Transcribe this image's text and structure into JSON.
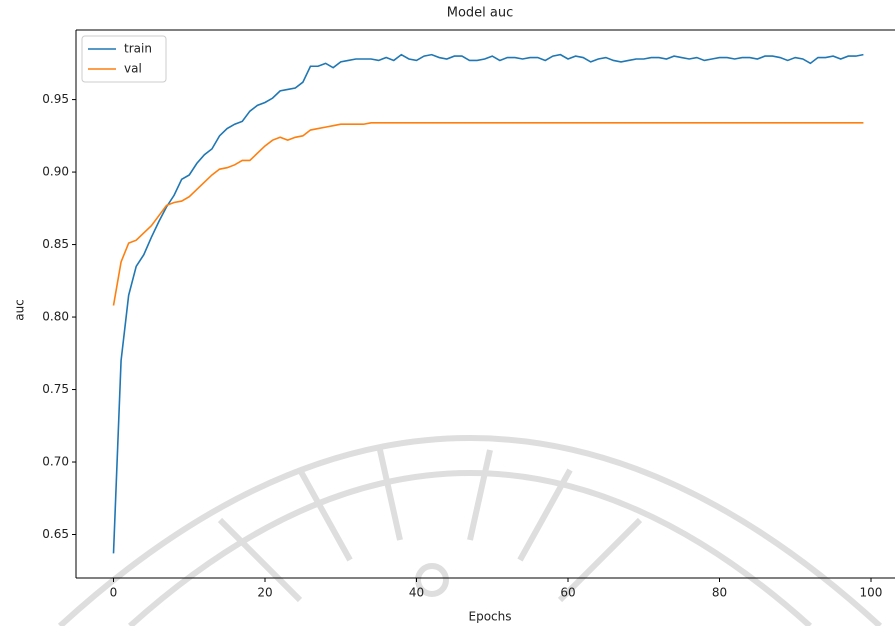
{
  "chart_data": {
    "type": "line",
    "title": "Model auc",
    "x_label": "Epochs",
    "y_label": "auc",
    "x": [
      0,
      1,
      2,
      3,
      4,
      5,
      6,
      7,
      8,
      9,
      10,
      11,
      12,
      13,
      14,
      15,
      16,
      17,
      18,
      19,
      20,
      21,
      22,
      23,
      24,
      25,
      26,
      27,
      28,
      29,
      30,
      31,
      32,
      33,
      34,
      35,
      36,
      37,
      38,
      39,
      40,
      41,
      42,
      43,
      44,
      45,
      46,
      47,
      48,
      49,
      50,
      51,
      52,
      53,
      54,
      55,
      56,
      57,
      58,
      59,
      60,
      61,
      62,
      63,
      64,
      65,
      66,
      67,
      68,
      69,
      70,
      71,
      72,
      73,
      74,
      75,
      76,
      77,
      78,
      79,
      80,
      81,
      82,
      83,
      84,
      85,
      86,
      87,
      88,
      89,
      90,
      91,
      92,
      93,
      94,
      95,
      96,
      97,
      98,
      99
    ],
    "series": [
      {
        "name": "train",
        "color": "#1f77b4",
        "values": [
          0.637,
          0.77,
          0.815,
          0.835,
          0.843,
          0.855,
          0.866,
          0.876,
          0.884,
          0.895,
          0.898,
          0.906,
          0.912,
          0.916,
          0.925,
          0.93,
          0.933,
          0.935,
          0.942,
          0.946,
          0.948,
          0.951,
          0.956,
          0.957,
          0.958,
          0.962,
          0.973,
          0.973,
          0.975,
          0.972,
          0.976,
          0.977,
          0.978,
          0.978,
          0.978,
          0.977,
          0.979,
          0.977,
          0.981,
          0.978,
          0.977,
          0.98,
          0.981,
          0.979,
          0.978,
          0.98,
          0.98,
          0.977,
          0.977,
          0.978,
          0.98,
          0.977,
          0.979,
          0.979,
          0.978,
          0.979,
          0.979,
          0.977,
          0.98,
          0.981,
          0.978,
          0.98,
          0.979,
          0.976,
          0.978,
          0.979,
          0.977,
          0.976,
          0.977,
          0.978,
          0.978,
          0.979,
          0.979,
          0.978,
          0.98,
          0.979,
          0.978,
          0.979,
          0.977,
          0.978,
          0.979,
          0.979,
          0.978,
          0.979,
          0.979,
          0.978,
          0.98,
          0.98,
          0.979,
          0.977,
          0.979,
          0.978,
          0.975,
          0.979,
          0.979,
          0.98,
          0.978,
          0.98,
          0.98,
          0.981
        ]
      },
      {
        "name": "val",
        "color": "#ff7f0e",
        "values": [
          0.808,
          0.838,
          0.851,
          0.853,
          0.858,
          0.863,
          0.87,
          0.877,
          0.879,
          0.88,
          0.883,
          0.888,
          0.893,
          0.898,
          0.902,
          0.903,
          0.905,
          0.908,
          0.908,
          0.913,
          0.918,
          0.922,
          0.924,
          0.922,
          0.924,
          0.925,
          0.929,
          0.93,
          0.931,
          0.932,
          0.933,
          0.933,
          0.933,
          0.933,
          0.934,
          0.934,
          0.934,
          0.934,
          0.934,
          0.934,
          0.934,
          0.934,
          0.934,
          0.934,
          0.934,
          0.934,
          0.934,
          0.934,
          0.934,
          0.934,
          0.934,
          0.934,
          0.934,
          0.934,
          0.934,
          0.934,
          0.934,
          0.934,
          0.934,
          0.934,
          0.934,
          0.934,
          0.934,
          0.934,
          0.934,
          0.934,
          0.934,
          0.934,
          0.934,
          0.934,
          0.934,
          0.934,
          0.934,
          0.934,
          0.934,
          0.934,
          0.934,
          0.934,
          0.934,
          0.934,
          0.934,
          0.934,
          0.934,
          0.934,
          0.934,
          0.934,
          0.934,
          0.934,
          0.934,
          0.934,
          0.934,
          0.934,
          0.934,
          0.934,
          0.934,
          0.934,
          0.934,
          0.934,
          0.934,
          0.934
        ]
      }
    ],
    "xlim": [
      -4.95,
      103.95
    ],
    "ylim": [
      0.62,
      0.998
    ],
    "xticks": [
      0,
      20,
      40,
      60,
      80,
      100
    ],
    "yticks": [
      0.65,
      {
        "value": 0.7,
        "label": "0.70"
      },
      0.75,
      {
        "value": 0.8,
        "label": "0.80"
      },
      0.85,
      {
        "value": 0.9,
        "label": "0.90"
      },
      0.95
    ],
    "legend": "upper left"
  }
}
